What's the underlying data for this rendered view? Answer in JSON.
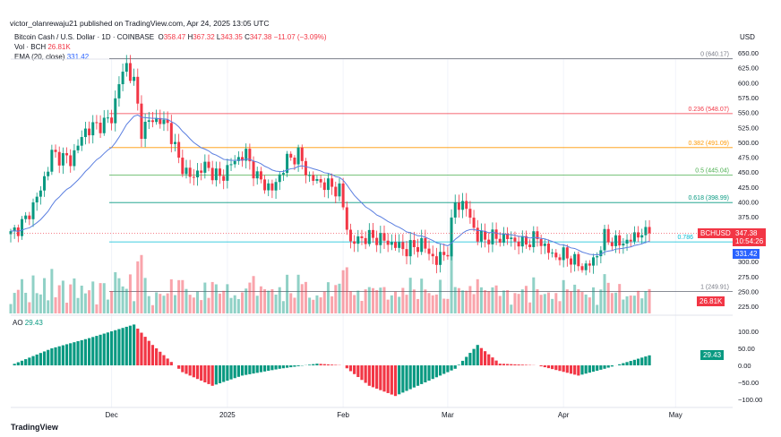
{
  "header": {
    "published": "victor_olanrewaju21 published on TradingView.com, Apr 24, 2025 13:05 UTC"
  },
  "legend": {
    "symbol": "Bitcoin Cash / U.S. Dollar · 1D · COINBASE",
    "o_label": "O",
    "o": "358.47",
    "h_label": "H",
    "h": "367.32",
    "l_label": "L",
    "l": "343.35",
    "c_label": "C",
    "c": "347.38",
    "change": "−11.07 (−3.09%)",
    "vol_label": "Vol · BCH",
    "vol": "26.81K",
    "ema_label": "EMA (20, close)",
    "ema": "331.42",
    "ao_label": "AO",
    "ao": "29.43"
  },
  "currency": "USD",
  "tags": {
    "symbol": "BCHUSD",
    "price": "347.38",
    "countdown": "10:54:26",
    "ema": "331.42",
    "vol": "26.81K",
    "ao": "29.43"
  },
  "footer": {
    "brand": "TradingView"
  },
  "chart_data": {
    "type": "candlestick",
    "price_axis": {
      "ticks": [
        650,
        625,
        600,
        575,
        550,
        525,
        500,
        475,
        450,
        425,
        400,
        375,
        300,
        275,
        250,
        225
      ],
      "range": [
        225,
        650
      ]
    },
    "ao_axis": {
      "ticks": [
        100,
        50,
        0,
        -50,
        -100
      ],
      "labels": [
        "100.00",
        "50.00",
        "0.00",
        "−50.00",
        "−100.00"
      ]
    },
    "x_ticks": [
      {
        "label": "Dec",
        "day": 27
      },
      {
        "label": "2025",
        "day": 58
      },
      {
        "label": "Feb",
        "day": 89
      },
      {
        "label": "Mar",
        "day": 117
      },
      {
        "label": "Apr",
        "day": 148
      },
      {
        "label": "May",
        "day": 178
      }
    ],
    "fib_levels": [
      {
        "label": "0 (640.17)",
        "price": 640.17,
        "color": "#787b86"
      },
      {
        "label": "0.236 (548.07)",
        "price": 548.07,
        "color": "#f23645"
      },
      {
        "label": "0.382 (491.09)",
        "price": 491.09,
        "color": "#ff9800"
      },
      {
        "label": "0.5 (445.04)",
        "price": 445.04,
        "color": "#4caf50"
      },
      {
        "label": "0.618 (398.99)",
        "price": 398.99,
        "color": "#089981"
      },
      {
        "label": "0.786",
        "price": 333,
        "color": "#00bcd4"
      },
      {
        "label": "1 (249.91)",
        "price": 249.91,
        "color": "#787b86"
      }
    ],
    "close_keypoints": [
      [
        0,
        345
      ],
      [
        4,
        370
      ],
      [
        8,
        420
      ],
      [
        11,
        480
      ],
      [
        16,
        470
      ],
      [
        20,
        520
      ],
      [
        24,
        530
      ],
      [
        27,
        540
      ],
      [
        29,
        600
      ],
      [
        31,
        630
      ],
      [
        33,
        600
      ],
      [
        35,
        520
      ],
      [
        38,
        540
      ],
      [
        42,
        530
      ],
      [
        45,
        470
      ],
      [
        48,
        440
      ],
      [
        52,
        460
      ],
      [
        56,
        440
      ],
      [
        60,
        470
      ],
      [
        63,
        480
      ],
      [
        66,
        440
      ],
      [
        70,
        420
      ],
      [
        74,
        470
      ],
      [
        77,
        480
      ],
      [
        80,
        440
      ],
      [
        84,
        430
      ],
      [
        88,
        420
      ],
      [
        91,
        330
      ],
      [
        94,
        340
      ],
      [
        98,
        340
      ],
      [
        102,
        330
      ],
      [
        106,
        320
      ],
      [
        110,
        330
      ],
      [
        114,
        300
      ],
      [
        117,
        320
      ],
      [
        119,
        400
      ],
      [
        122,
        390
      ],
      [
        125,
        340
      ],
      [
        129,
        340
      ],
      [
        133,
        340
      ],
      [
        137,
        330
      ],
      [
        141,
        340
      ],
      [
        145,
        310
      ],
      [
        149,
        310
      ],
      [
        153,
        290
      ],
      [
        156,
        300
      ],
      [
        159,
        340
      ],
      [
        163,
        330
      ],
      [
        167,
        340
      ],
      [
        170,
        358
      ],
      [
        171,
        347.38
      ]
    ],
    "ao_keypoints": [
      [
        0,
        0
      ],
      [
        11,
        50
      ],
      [
        21,
        80
      ],
      [
        33,
        120
      ],
      [
        38,
        60
      ],
      [
        46,
        -20
      ],
      [
        54,
        -60
      ],
      [
        62,
        -30
      ],
      [
        72,
        -10
      ],
      [
        82,
        5
      ],
      [
        89,
        0
      ],
      [
        96,
        -60
      ],
      [
        103,
        -90
      ],
      [
        113,
        -40
      ],
      [
        119,
        -10
      ],
      [
        125,
        60
      ],
      [
        131,
        5
      ],
      [
        141,
        0
      ],
      [
        152,
        -30
      ],
      [
        159,
        -10
      ],
      [
        171,
        29.43
      ]
    ],
    "colors": {
      "up": "#089981",
      "down": "#f23645",
      "ema": "#5b7fe0"
    }
  }
}
